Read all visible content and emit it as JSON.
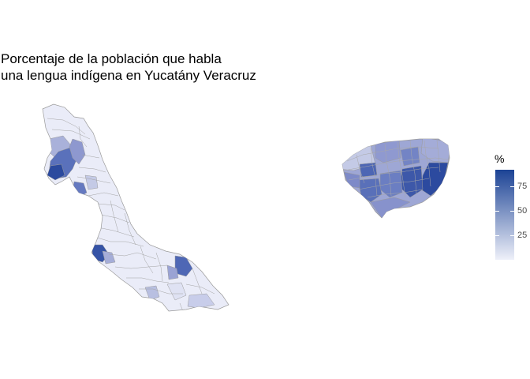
{
  "title": {
    "line1": "Porcentaje de la población que habla",
    "line2": "una lengua indígena en Yucatány Veracruz"
  },
  "legend": {
    "title": "%",
    "breaks": [
      "75",
      "50",
      "25"
    ],
    "break_values": [
      75,
      50,
      25
    ],
    "min": 0,
    "max": 92,
    "color_low": "#eef0f9",
    "color_high": "#1c4395"
  },
  "map_data": {
    "regions": [
      {
        "name": "Veracruz",
        "level": "low"
      },
      {
        "name": "Yucatán",
        "level": "medium-high"
      }
    ],
    "stroke_color": "#9a9a9a"
  }
}
